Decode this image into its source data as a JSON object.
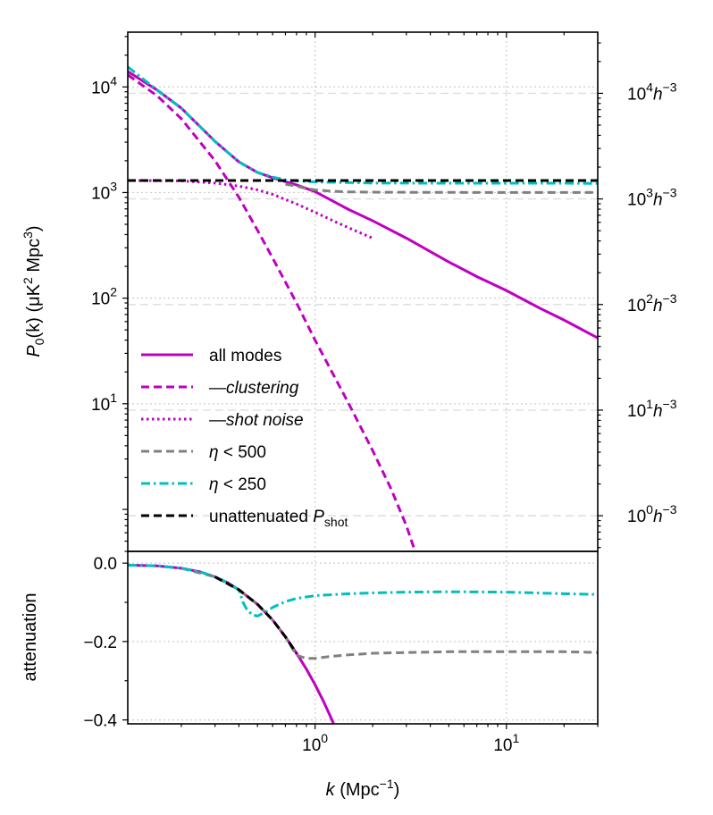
{
  "chart_data": [
    {
      "type": "line",
      "panel": "top",
      "ylabel": {
        "main": "P",
        "sub": "0",
        "tail": "(k) (μK",
        "sup": "2",
        "tail2": " Mpc",
        "sup2": "3",
        "end": ")"
      },
      "xscale": "log",
      "yscale": "log",
      "xlim": [
        0.105,
        30
      ],
      "ylim": [
        0.4,
        33000
      ],
      "grid": true,
      "legend_position": "lower-left",
      "y_ticks": [
        {
          "value": 10,
          "base": "10",
          "exp": "1"
        },
        {
          "value": 100,
          "base": "10",
          "exp": "2"
        },
        {
          "value": 1000,
          "base": "10",
          "exp": "3"
        },
        {
          "value": 10000,
          "base": "10",
          "exp": "4"
        }
      ],
      "secondary_y_ticks": [
        {
          "value": 0.87,
          "base": "10",
          "exp": "0",
          "unit": "h",
          "unit_exp": "−3"
        },
        {
          "value": 8.7,
          "base": "10",
          "exp": "1",
          "unit": "h",
          "unit_exp": "−3"
        },
        {
          "value": 87,
          "base": "10",
          "exp": "2",
          "unit": "h",
          "unit_exp": "−3"
        },
        {
          "value": 870,
          "base": "10",
          "exp": "3",
          "unit": "h",
          "unit_exp": "−3"
        },
        {
          "value": 8700,
          "base": "10",
          "exp": "4",
          "unit": "h",
          "unit_exp": "−3"
        }
      ],
      "series": [
        {
          "name": "all modes",
          "style": "solid",
          "color": "#bf00bf",
          "x": [
            0.105,
            0.15,
            0.2,
            0.3,
            0.4,
            0.5,
            0.6,
            0.8,
            1,
            1.5,
            2,
            3,
            5,
            7,
            10,
            15,
            20,
            30
          ],
          "y": [
            14000,
            9300,
            6300,
            3050,
            1950,
            1550,
            1380,
            1180,
            1020,
            690,
            540,
            370,
            220,
            160,
            118,
            80,
            62,
            42
          ]
        },
        {
          "name": "—clustering",
          "style": "dashed",
          "color": "#bf00bf",
          "x": [
            0.105,
            0.15,
            0.2,
            0.3,
            0.4,
            0.5,
            0.6,
            0.8,
            1,
            1.5,
            2,
            2.5,
            3,
            3.3
          ],
          "y": [
            13000,
            8200,
            5000,
            2000,
            900,
            440,
            240,
            90,
            40,
            10,
            3.6,
            1.55,
            0.7,
            0.42
          ]
        },
        {
          "name": "—shot noise",
          "style": "dotted",
          "color": "#bf00bf",
          "x": [
            0.105,
            0.2,
            0.3,
            0.4,
            0.5,
            0.6,
            0.7,
            0.8,
            1,
            1.3,
            1.6,
            2
          ],
          "y": [
            1300,
            1290,
            1230,
            1150,
            1060,
            960,
            860,
            780,
            650,
            520,
            440,
            370
          ]
        },
        {
          "name": "η < 500",
          "style": "dashed",
          "color": "#808080",
          "x": [
            0.7,
            0.8,
            0.9,
            1,
            1.2,
            1.5,
            2,
            3,
            5,
            10,
            20,
            30
          ],
          "y": [
            1200,
            1150,
            1090,
            1060,
            1030,
            1015,
            1008,
            1005,
            1003,
            1002,
            1002,
            1000
          ]
        },
        {
          "name": "η < 250",
          "style": "dashdot",
          "color": "#00bfbf",
          "x": [
            0.105,
            0.15,
            0.2,
            0.3,
            0.4,
            0.5,
            0.6,
            0.7,
            0.8,
            1,
            2,
            5,
            10,
            20,
            30
          ],
          "y": [
            15500,
            9300,
            6300,
            3050,
            1950,
            1550,
            1400,
            1320,
            1290,
            1260,
            1230,
            1225,
            1225,
            1225,
            1220
          ]
        },
        {
          "name": "unattenuated ",
          "name_sub_base": "P",
          "name_sub": "shot",
          "style": "dashed",
          "color": "#000000",
          "x": [
            0.105,
            30
          ],
          "y": [
            1300,
            1300
          ]
        }
      ]
    },
    {
      "type": "line",
      "panel": "bottom",
      "xlabel": {
        "main": "k",
        "tail": " (Mpc",
        "sup": "−1",
        "end": ")"
      },
      "ylabel": "attenuation",
      "xscale": "log",
      "xlim": [
        0.105,
        30
      ],
      "ylim": [
        -0.41,
        0.03
      ],
      "grid": true,
      "x_ticks": [
        {
          "value": 1,
          "base": "10",
          "exp": "0"
        },
        {
          "value": 10,
          "base": "10",
          "exp": "1"
        }
      ],
      "y_ticks": [
        {
          "value": 0,
          "label": "0.0"
        },
        {
          "value": -0.2,
          "label": "−0.2"
        },
        {
          "value": -0.4,
          "label": "−0.4"
        }
      ],
      "series": [
        {
          "name": "all modes",
          "style": "solid",
          "color": "#bf00bf",
          "x": [
            0.105,
            0.15,
            0.2,
            0.25,
            0.3,
            0.35,
            0.4,
            0.5,
            0.6,
            0.7,
            0.8,
            0.9,
            1,
            1.1,
            1.2,
            1.25
          ],
          "y": [
            -0.005,
            -0.007,
            -0.013,
            -0.022,
            -0.035,
            -0.05,
            -0.068,
            -0.105,
            -0.145,
            -0.188,
            -0.23,
            -0.27,
            -0.31,
            -0.35,
            -0.39,
            -0.41
          ]
        },
        {
          "name": "η < 500",
          "style": "dashed",
          "color": "#808080",
          "x": [
            0.2,
            0.3,
            0.4,
            0.5,
            0.6,
            0.7,
            0.8,
            0.9,
            1,
            1.2,
            1.5,
            2,
            3,
            5,
            10,
            20,
            30
          ],
          "y": [
            -0.013,
            -0.035,
            -0.068,
            -0.105,
            -0.145,
            -0.188,
            -0.235,
            -0.243,
            -0.243,
            -0.238,
            -0.234,
            -0.23,
            -0.228,
            -0.226,
            -0.226,
            -0.226,
            -0.228
          ]
        },
        {
          "name": "η < 250",
          "style": "dashdot",
          "color": "#00bfbf",
          "x": [
            0.105,
            0.15,
            0.2,
            0.25,
            0.3,
            0.35,
            0.4,
            0.42,
            0.44,
            0.47,
            0.5,
            0.55,
            0.6,
            0.7,
            0.8,
            1,
            1.5,
            2,
            3,
            5,
            10,
            20,
            30
          ],
          "y": [
            -0.005,
            -0.007,
            -0.013,
            -0.022,
            -0.035,
            -0.05,
            -0.068,
            -0.1,
            -0.118,
            -0.132,
            -0.135,
            -0.125,
            -0.113,
            -0.098,
            -0.09,
            -0.083,
            -0.078,
            -0.076,
            -0.074,
            -0.073,
            -0.074,
            -0.078,
            -0.08
          ]
        },
        {
          "name": "unattenuated ",
          "style": "dashed",
          "color": "#000000",
          "x": [
            0.3,
            0.4,
            0.5,
            0.6,
            0.7,
            0.8
          ],
          "y": [
            -0.035,
            -0.068,
            -0.105,
            -0.145,
            -0.188,
            -0.23
          ]
        }
      ]
    }
  ]
}
